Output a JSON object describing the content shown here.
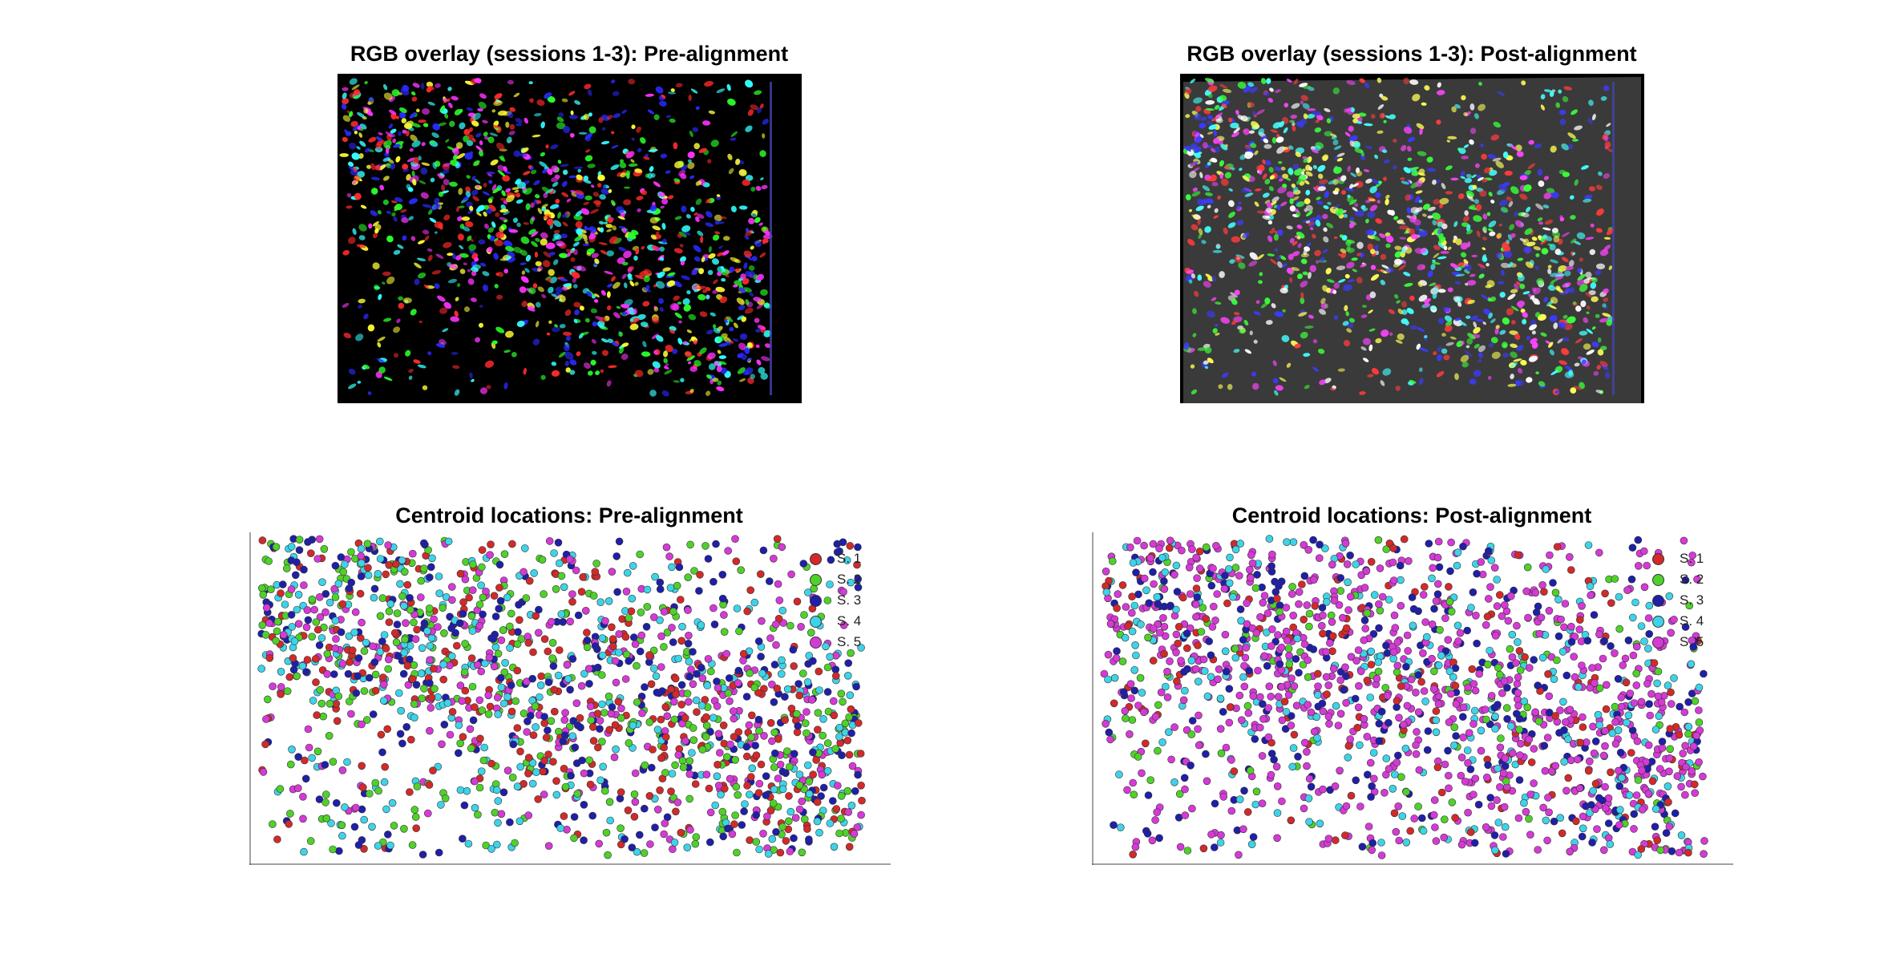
{
  "figure": {
    "colors": {
      "session1": "#d22a2a",
      "session2": "#4fd12a",
      "session3": "#1f1fa8",
      "session4": "#3ed3e8",
      "session5": "#d63ad6",
      "post_bg": "#3a3a3a"
    }
  },
  "chart_data": [
    {
      "type": "image",
      "title": "RGB overlay (sessions 1-3): Pre-alignment"
    },
    {
      "type": "image",
      "title": "RGB overlay (sessions 1-3): Post-alignment"
    },
    {
      "type": "scatter",
      "title": "Centroid locations: Pre-alignment",
      "xlabel": "",
      "ylabel": "",
      "grid": false,
      "legend_position": "top-right",
      "legend": [
        "S. 1",
        "S. 2",
        "S. 3",
        "S. 4",
        "S. 5"
      ],
      "series_colors": [
        "#d22a2a",
        "#4fd12a",
        "#1f1fa8",
        "#3ed3e8",
        "#d63ad6"
      ]
    },
    {
      "type": "scatter",
      "title": "Centroid locations: Post-alignment",
      "xlabel": "",
      "ylabel": "",
      "grid": false,
      "legend_position": "top-right",
      "legend": [
        "S. 1",
        "S. 2",
        "S. 3",
        "S. 4",
        "S. 5"
      ],
      "series_colors": [
        "#d22a2a",
        "#4fd12a",
        "#1f1fa8",
        "#3ed3e8",
        "#d63ad6"
      ]
    }
  ]
}
